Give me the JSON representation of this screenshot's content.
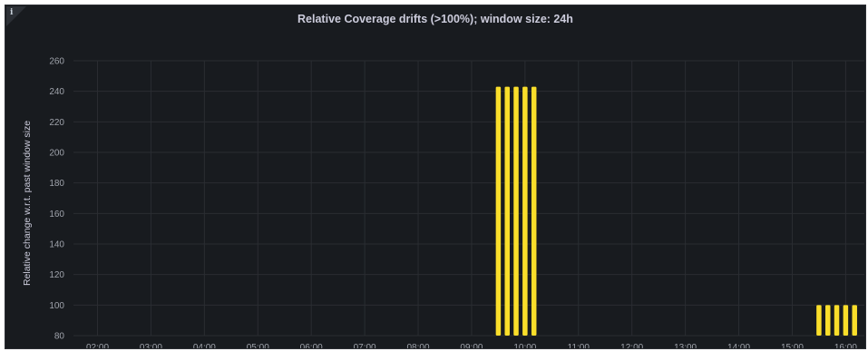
{
  "panel": {
    "title": "Relative Coverage drifts (>100%); window size: 24h",
    "info_icon": "i"
  },
  "chart_data": {
    "type": "bar",
    "title": "Relative Coverage drifts (>100%); window size: 24h",
    "xlabel": "",
    "ylabel": "Relative change w.r.t. past window size",
    "ylim": [
      80,
      260
    ],
    "y_ticks": [
      80,
      100,
      120,
      140,
      160,
      180,
      200,
      220,
      240,
      260
    ],
    "x_ticks": [
      "02:00",
      "03:00",
      "04:00",
      "05:00",
      "06:00",
      "07:00",
      "08:00",
      "09:00",
      "10:00",
      "11:00",
      "12:00",
      "13:00",
      "14:00",
      "15:00",
      "16:00"
    ],
    "x_range_hours": [
      1.55,
      16.35
    ],
    "grid": true,
    "bar_color": "#fade2a",
    "series": [
      {
        "x_hours": [
          9.5,
          9.667,
          9.833,
          10.0,
          10.167,
          15.5,
          15.667,
          15.833,
          16.0,
          16.167
        ],
        "values": [
          243,
          243,
          243,
          243,
          243,
          100,
          100,
          100,
          100,
          100
        ]
      }
    ]
  }
}
